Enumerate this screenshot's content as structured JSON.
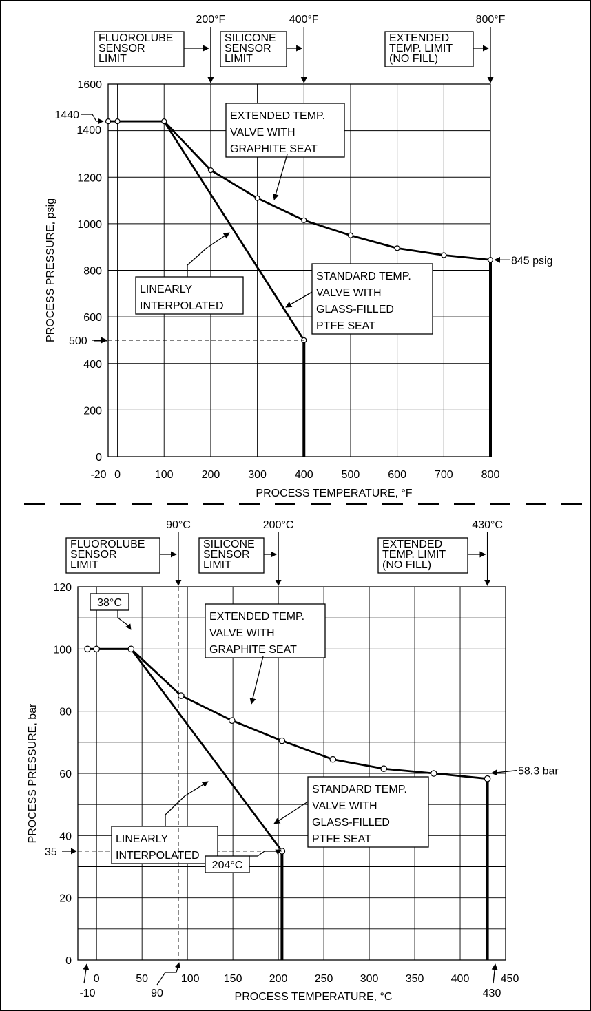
{
  "chart_data": [
    {
      "type": "line",
      "xlabel": "PROCESS TEMPERATURE, °F",
      "ylabel": "PROCESS PRESSURE, psig",
      "xlim": [
        -20,
        800
      ],
      "ylim": [
        0,
        1600
      ],
      "x_ticks": [
        "-20",
        "0",
        "100",
        "200",
        "300",
        "400",
        "500",
        "600",
        "700",
        "800"
      ],
      "y_ticks": [
        "0",
        "200",
        "400",
        "500",
        "600",
        "800",
        "1000",
        "1200",
        "1400",
        "1440",
        "1600"
      ],
      "grid": true,
      "series": [
        {
          "name": "EXTENDED TEMP. VALVE WITH GRAPHITE SEAT",
          "points": [
            [
              -20,
              1440
            ],
            [
              0,
              1440
            ],
            [
              100,
              1440
            ],
            [
              200,
              1230
            ],
            [
              300,
              1110
            ],
            [
              400,
              1015
            ],
            [
              500,
              950
            ],
            [
              600,
              895
            ],
            [
              700,
              865
            ],
            [
              800,
              845
            ]
          ]
        },
        {
          "name": "STANDARD TEMP. VALVE WITH GLASS-FILLED PTFE SEAT",
          "points": [
            [
              -20,
              1440
            ],
            [
              0,
              1440
            ],
            [
              100,
              1440
            ],
            [
              400,
              500
            ]
          ]
        }
      ],
      "limits": [
        {
          "label_lines": [
            "FLUOROLUBE",
            "SENSOR",
            "LIMIT"
          ],
          "value_label": "200°F",
          "x": 200
        },
        {
          "label_lines": [
            "SILICONE",
            "SENSOR",
            "LIMIT"
          ],
          "value_label": "400°F",
          "x": 400
        },
        {
          "label_lines": [
            "EXTENDED",
            "TEMP. LIMIT",
            "(NO FILL)"
          ],
          "value_label": "800°F",
          "x": 800
        }
      ],
      "annotations": {
        "graphite_box": [
          "EXTENDED TEMP.",
          "VALVE WITH",
          "GRAPHITE SEAT"
        ],
        "ptfe_box": [
          "STANDARD TEMP.",
          "VALVE WITH",
          "GLASS-FILLED",
          "PTFE SEAT"
        ],
        "interp_box": [
          "LINEARLY",
          "INTERPOLATED"
        ],
        "end_value": "845 psig",
        "y_marker": "500",
        "top_left_value": "1440"
      }
    },
    {
      "type": "line",
      "xlabel": "PROCESS TEMPERATURE, °C",
      "ylabel": "PROCESS PRESSURE, bar",
      "xlim": [
        -10,
        450
      ],
      "ylim": [
        0,
        120
      ],
      "x_ticks": [
        "-10",
        "0",
        "50",
        "90",
        "100",
        "150",
        "200",
        "250",
        "300",
        "350",
        "400",
        "430",
        "450"
      ],
      "y_ticks": [
        "0",
        "20",
        "35",
        "40",
        "60",
        "80",
        "100",
        "120"
      ],
      "grid": true,
      "series": [
        {
          "name": "EXTENDED TEMP. VALVE WITH GRAPHITE SEAT",
          "points": [
            [
              -10,
              100
            ],
            [
              0,
              100
            ],
            [
              38,
              100
            ],
            [
              93,
              85
            ],
            [
              149,
              77
            ],
            [
              204,
              70.5
            ],
            [
              260,
              64.5
            ],
            [
              316,
              61.5
            ],
            [
              371,
              60
            ],
            [
              430,
              58.3
            ]
          ]
        },
        {
          "name": "STANDARD TEMP. VALVE WITH GLASS-FILLED PTFE SEAT",
          "points": [
            [
              -10,
              100
            ],
            [
              0,
              100
            ],
            [
              38,
              100
            ],
            [
              204,
              35
            ]
          ]
        }
      ],
      "limits": [
        {
          "label_lines": [
            "FLUOROLUBE",
            "SENSOR",
            "LIMIT"
          ],
          "value_label": "90°C",
          "x": 90
        },
        {
          "label_lines": [
            "SILICONE",
            "SENSOR",
            "LIMIT"
          ],
          "value_label": "200°C",
          "x": 200
        },
        {
          "label_lines": [
            "EXTENDED",
            "TEMP. LIMIT",
            "(NO FILL)"
          ],
          "value_label": "430°C",
          "x": 430
        }
      ],
      "annotations": {
        "graphite_box": [
          "EXTENDED TEMP.",
          "VALVE WITH",
          "GRAPHITE SEAT"
        ],
        "ptfe_box": [
          "STANDARD TEMP.",
          "VALVE WITH",
          "GLASS-FILLED",
          "PTFE SEAT"
        ],
        "interp_box": [
          "LINEARLY",
          "INTERPOLATED"
        ],
        "end_value": "58.3 bar",
        "y_marker": "35",
        "temp_38": "38°C",
        "temp_204": "204°C"
      }
    }
  ]
}
